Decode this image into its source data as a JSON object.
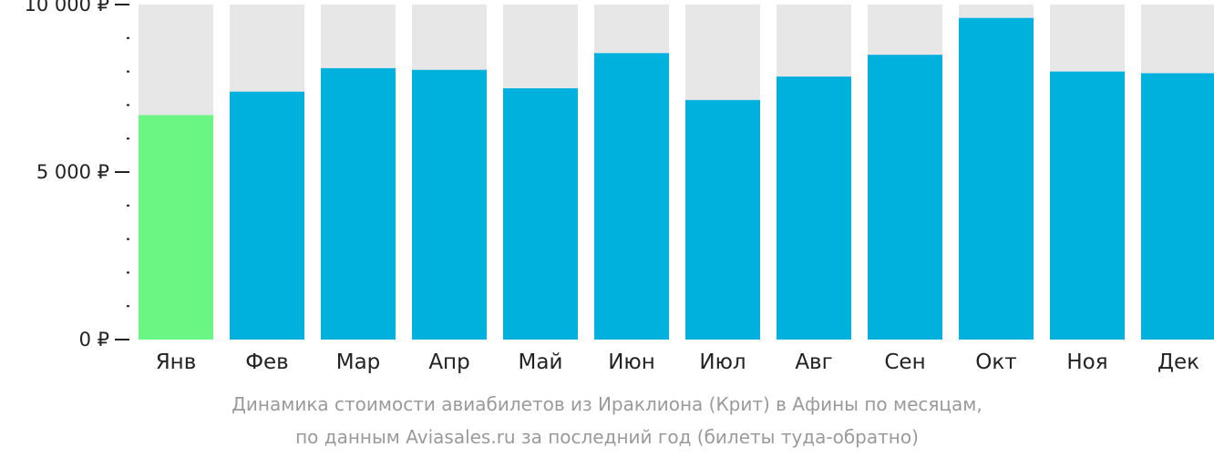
{
  "chart_data": {
    "type": "bar",
    "categories": [
      "Янв",
      "Фев",
      "Мар",
      "Апр",
      "Май",
      "Июн",
      "Июл",
      "Авг",
      "Сен",
      "Окт",
      "Ноя",
      "Дек"
    ],
    "values": [
      6700,
      7400,
      8100,
      8050,
      7500,
      8550,
      7150,
      7850,
      8500,
      9600,
      8000,
      7950
    ],
    "highlight_index": 0,
    "ylim": [
      0,
      10000
    ],
    "ytick_labels": [
      {
        "value": 0,
        "label": "0 ₽"
      },
      {
        "value": 5000,
        "label": "5 000 ₽"
      },
      {
        "value": 10000,
        "label": "10 000 ₽"
      }
    ],
    "minor_tick_step": 1000,
    "xlabel": "",
    "ylabel": "",
    "grid": false,
    "colors": {
      "bar": "#00b0dd",
      "highlight": "#6bf582",
      "background_bar": "#e7e7e7",
      "axis": "#222222",
      "tick_label": "#222222"
    }
  },
  "caption": {
    "line1": "Динамика стоимости авиабилетов из Ираклиона (Крит) в Афины по месяцам,",
    "line2": "по данным Aviasales.ru за последний год (билеты туда-обратно)"
  }
}
